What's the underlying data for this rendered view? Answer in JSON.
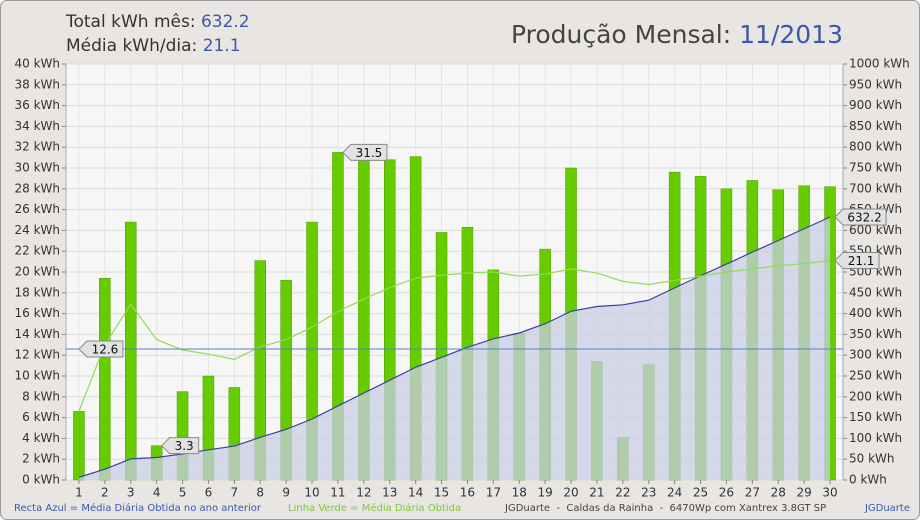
{
  "header": {
    "total_label": "Total kWh mês:",
    "total": 632.2,
    "average_label": "Média kWh/dia:",
    "average": 21.1,
    "title": "Produção Mensal:",
    "period": "11/2013"
  },
  "chart_data": {
    "type": "bar",
    "categories": [
      "1",
      "2",
      "3",
      "4",
      "5",
      "6",
      "7",
      "8",
      "9",
      "10",
      "11",
      "12",
      "13",
      "14",
      "15",
      "16",
      "17",
      "18",
      "19",
      "20",
      "21",
      "22",
      "23",
      "24",
      "25",
      "26",
      "27",
      "28",
      "29",
      "30"
    ],
    "series": [
      {
        "type": "bar",
        "color": "#66cc00",
        "mark_max_min": true,
        "values": [
          6.6,
          19.4,
          24.8,
          3.3,
          8.5,
          10.0,
          8.9,
          21.1,
          19.2,
          24.8,
          31.5,
          31.0,
          30.8,
          31.1,
          23.8,
          24.3,
          20.2,
          14.1,
          22.2,
          30.0,
          11.4,
          4.1,
          11.1,
          29.6,
          29.2,
          28.0,
          28.8,
          27.9,
          28.3,
          28.2
        ]
      },
      {
        "type": "area",
        "axis": "y2",
        "color": "#3c40a0",
        "fill": "#c8cde3",
        "end_label": true,
        "values": [
          6.6,
          26.0,
          50.8,
          54.1,
          62.6,
          72.6,
          81.5,
          102.6,
          121.8,
          146.6,
          178.1,
          209.1,
          239.9,
          271.0,
          294.8,
          319.1,
          339.3,
          353.4,
          375.6,
          405.6,
          417.0,
          421.1,
          432.2,
          461.8,
          491.0,
          519.0,
          547.8,
          575.7,
          604.0,
          632.2
        ]
      },
      {
        "type": "line",
        "color": "#8fdd55",
        "end_label": true,
        "values": [
          6.6,
          13.0,
          16.9,
          13.5,
          12.5,
          12.1,
          11.6,
          12.8,
          13.5,
          14.7,
          16.2,
          17.4,
          18.5,
          19.4,
          19.7,
          19.9,
          20.0,
          19.6,
          19.8,
          20.3,
          19.9,
          19.1,
          18.8,
          19.2,
          19.6,
          20.0,
          20.3,
          20.6,
          20.8,
          21.1
        ]
      }
    ],
    "reference_line": {
      "value": 12.6,
      "color": "#5b7fd0"
    },
    "ylim": [
      0,
      40
    ],
    "yticks": [
      {
        "value": 0,
        "label": "0 kWh"
      },
      {
        "value": 2,
        "label": "2 kWh"
      },
      {
        "value": 4,
        "label": "4 kWh"
      },
      {
        "value": 6,
        "label": "6 kWh"
      },
      {
        "value": 8,
        "label": "8 kWh"
      },
      {
        "value": 10,
        "label": "10 kWh"
      },
      {
        "value": 12,
        "label": "12 kWh"
      },
      {
        "value": 14,
        "label": "14 kWh"
      },
      {
        "value": 16,
        "label": "16 kWh"
      },
      {
        "value": 18,
        "label": "18 kWh"
      },
      {
        "value": 20,
        "label": "20 kWh"
      },
      {
        "value": 22,
        "label": "22 kWh"
      },
      {
        "value": 24,
        "label": "24 kWh"
      },
      {
        "value": 26,
        "label": "26 kWh"
      },
      {
        "value": 28,
        "label": "28 kWh"
      },
      {
        "value": 30,
        "label": "30 kWh"
      },
      {
        "value": 32,
        "label": "32 kWh"
      },
      {
        "value": 34,
        "label": "34 kWh"
      },
      {
        "value": 36,
        "label": "36 kWh"
      },
      {
        "value": 38,
        "label": "38 kWh"
      },
      {
        "value": 40,
        "label": "40 kWh"
      }
    ],
    "y2lim": [
      0,
      1000
    ],
    "y2ticks": [
      {
        "value": 0,
        "label": "0 kWh"
      },
      {
        "value": 50,
        "label": "50 kWh"
      },
      {
        "value": 100,
        "label": "100 kWh"
      },
      {
        "value": 150,
        "label": "150 kWh"
      },
      {
        "value": 200,
        "label": "200 kWh"
      },
      {
        "value": 250,
        "label": "250 kWh"
      },
      {
        "value": 300,
        "label": "300 kWh"
      },
      {
        "value": 350,
        "label": "350 kWh"
      },
      {
        "value": 400,
        "label": "400 kWh"
      },
      {
        "value": 450,
        "label": "450 kWh"
      },
      {
        "value": 500,
        "label": "500 kWh"
      },
      {
        "value": 550,
        "label": "550 kWh"
      },
      {
        "value": 600,
        "label": "600 kWh"
      },
      {
        "value": 650,
        "label": "650 kWh"
      },
      {
        "value": 700,
        "label": "700 kWh"
      },
      {
        "value": 750,
        "label": "750 kWh"
      },
      {
        "value": 800,
        "label": "800 kWh"
      },
      {
        "value": 850,
        "label": "850 kWh"
      },
      {
        "value": 900,
        "label": "900 kWh"
      },
      {
        "value": 950,
        "label": "950 kWh"
      },
      {
        "value": 1000,
        "label": "1000 kWh"
      }
    ],
    "grid": true
  },
  "footer": {
    "blue_note": "Recta Azul = Média Diária Obtida no ano anterior",
    "green_note": "Linha Verde = Média Diária Obtida",
    "site": "JGDuarte  -  Caldas da Rainha  -  6470Wp com Xantrex 3.8GT SP",
    "author": "JGDuarte"
  }
}
